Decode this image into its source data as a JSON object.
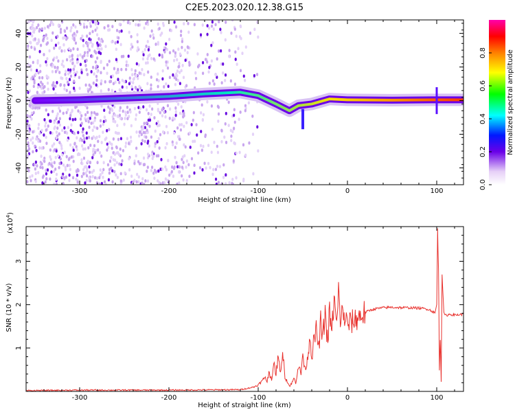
{
  "title": "C2E5.2023.020.12.38.G15",
  "colors": {
    "snr_line": "#e8302c",
    "axis": "#000000",
    "background": "#ffffff"
  },
  "chart_data": [
    {
      "type": "heatmap",
      "xlabel": "Height of straight line (km)",
      "ylabel": "Frequency (Hz)",
      "xlim": [
        -360,
        130
      ],
      "ylim": [
        -50,
        48
      ],
      "xticks": [
        -300,
        -200,
        -100,
        0,
        100
      ],
      "xtick_labels": [
        "-300",
        "-200",
        "-100",
        "0",
        "100"
      ],
      "yticks": [
        -40,
        -20,
        0,
        20,
        40
      ],
      "ytick_labels": [
        "-40",
        "-20",
        "0",
        "20",
        "40"
      ],
      "ridge_center_hz": [
        [
          -350,
          0
        ],
        [
          -300,
          0.5
        ],
        [
          -250,
          1.5
        ],
        [
          -200,
          2.5
        ],
        [
          -160,
          4
        ],
        [
          -120,
          5
        ],
        [
          -100,
          3
        ],
        [
          -80,
          -2
        ],
        [
          -65,
          -6
        ],
        [
          -55,
          -3
        ],
        [
          -40,
          -2
        ],
        [
          -20,
          1
        ],
        [
          0,
          0.5
        ],
        [
          50,
          0.3
        ],
        [
          95,
          0.5
        ],
        [
          130,
          0.5
        ]
      ],
      "colorbar": {
        "label": "Normalized spectral amplitude",
        "range": [
          0,
          1
        ],
        "ticks": [
          0.0,
          0.2,
          0.4,
          0.6,
          0.8
        ],
        "tick_labels": [
          "0.0",
          "0.2",
          "0.4",
          "0.6",
          "0.8"
        ]
      },
      "grid": false
    },
    {
      "type": "line",
      "xlabel": "Height of straight line (km)",
      "ylabel": "SNR (10 * v/v)",
      "y_multiplier": "(x10",
      "y_multiplier_exp": "4",
      "y_multiplier_close": ")",
      "xlim": [
        -360,
        130
      ],
      "ylim": [
        0,
        3.8
      ],
      "xticks": [
        -300,
        -200,
        -100,
        0,
        100
      ],
      "xtick_labels": [
        "-300",
        "-200",
        "-100",
        "0",
        "100"
      ],
      "yticks": [
        1,
        2,
        3
      ],
      "ytick_labels": [
        "1",
        "2",
        "3"
      ],
      "series": [
        {
          "x": [
            -360,
            -300,
            -200,
            -120,
            -105,
            -100,
            -95,
            -92,
            -90,
            -88,
            -85,
            -82,
            -80,
            -78,
            -75,
            -72,
            -70,
            -65,
            -62,
            -60,
            -58,
            -55,
            -52,
            -50,
            -48,
            -45,
            -42,
            -40,
            -38,
            -35,
            -32,
            -30,
            -28,
            -25,
            -22,
            -20,
            -18,
            -15,
            -12,
            -10,
            -8,
            -5,
            -2,
            0,
            5,
            10,
            15,
            20,
            25,
            30,
            40,
            50,
            60,
            70,
            80,
            90,
            95,
            98,
            100,
            101,
            102,
            103,
            104,
            105,
            106,
            108,
            110,
            115,
            120,
            130
          ],
          "y": [
            0.02,
            0.03,
            0.03,
            0.04,
            0.1,
            0.15,
            0.25,
            0.35,
            0.2,
            0.45,
            0.3,
            0.6,
            0.4,
            0.75,
            0.5,
            0.85,
            0.35,
            0.12,
            0.2,
            0.3,
            0.2,
            0.6,
            0.4,
            0.9,
            0.5,
            0.7,
            1.3,
            0.8,
            1.1,
            1.4,
            1.0,
            1.6,
            1.2,
            1.8,
            1.1,
            1.9,
            1.3,
            2.1,
            1.5,
            2.25,
            1.7,
            1.8,
            1.65,
            1.55,
            1.6,
            1.68,
            1.75,
            1.82,
            1.87,
            1.9,
            1.93,
            1.94,
            1.93,
            1.93,
            1.92,
            1.9,
            1.85,
            1.8,
            2.0,
            3.75,
            2.8,
            0.5,
            1.2,
            0.25,
            2.7,
            1.8,
            1.75,
            1.78,
            1.76,
            1.78
          ]
        }
      ],
      "grid": false
    }
  ]
}
